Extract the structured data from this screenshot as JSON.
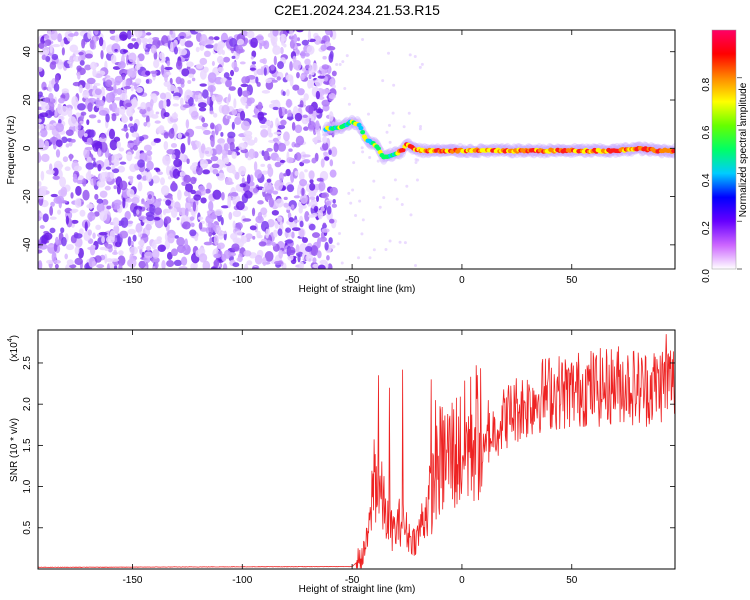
{
  "title": "C2E1.2024.234.21.53.R15",
  "chart_data": [
    {
      "type": "heatmap",
      "xlabel": "Height of straight line (km)",
      "ylabel": "Frequency (Hz)",
      "xlim": [
        -193,
        97
      ],
      "ylim": [
        -50,
        49
      ],
      "xticks": [
        -150,
        -100,
        -50,
        0,
        50
      ],
      "yticks": [
        -40,
        -20,
        0,
        20,
        40
      ],
      "noise_region_x": [
        -193,
        -58
      ],
      "signal_track": {
        "x": [
          -62,
          -55,
          -50,
          -47,
          -45,
          -43,
          -40,
          -38,
          -36,
          -33,
          -30,
          -27,
          -25,
          -22,
          -18,
          -10,
          0,
          10,
          20,
          30,
          40,
          50,
          60,
          70,
          80,
          90,
          97
        ],
        "y": [
          8,
          9,
          11,
          10,
          6,
          3,
          2,
          0,
          -4,
          -3,
          -2,
          -1,
          2,
          0,
          -1,
          -1,
          -1,
          -1,
          -1,
          -1,
          -1,
          -1,
          -1,
          -1,
          0,
          -1,
          -1
        ]
      },
      "colorbar": {
        "label": "Normalized spectral amplitude",
        "range": [
          0,
          1
        ],
        "ticks": [
          0.0,
          0.2,
          0.4,
          0.6,
          0.8
        ],
        "colors": [
          "#ffffff",
          "#cc66ff",
          "#6600ff",
          "#0000ff",
          "#00ccff",
          "#00ff66",
          "#66ff00",
          "#ffff00",
          "#ff8800",
          "#ff0000",
          "#ff0066"
        ]
      },
      "colors": {
        "noise": "#7a3cf0",
        "track_core": "#ff1a1a",
        "track_edge": "#00c8ff"
      }
    },
    {
      "type": "line",
      "xlabel": "Height of straight line (km)",
      "ylabel": "SNR (10 * v/v)",
      "yscale_label": "(x10",
      "yscale_exp": "4",
      "xlim": [
        -193,
        97
      ],
      "ylim": [
        0,
        2.9
      ],
      "xticks": [
        -150,
        -100,
        -50,
        0,
        50
      ],
      "yticks": [
        0.5,
        1.0,
        1.5,
        2.0,
        2.5
      ],
      "ytick_labels": [
        "0.5",
        "1.0",
        "1.5",
        "2.0",
        "2.5"
      ],
      "color": "#ee2222",
      "trend": {
        "x": [
          -193,
          -50,
          -45,
          -42,
          -40,
          -38,
          -35,
          -33,
          -30,
          -28,
          -26,
          -24,
          -22,
          -20,
          -18,
          -15,
          -12,
          -10,
          -5,
          0,
          5,
          8,
          10,
          12,
          15,
          20,
          25,
          30,
          35,
          40,
          45,
          50,
          55,
          60,
          65,
          70,
          75,
          80,
          85,
          90,
          95,
          97
        ],
        "y": [
          0.02,
          0.03,
          0.15,
          0.5,
          1.2,
          1.0,
          0.7,
          0.5,
          0.45,
          0.6,
          0.5,
          0.4,
          0.35,
          0.4,
          0.6,
          0.8,
          1.1,
          1.3,
          1.4,
          1.45,
          1.6,
          1.7,
          1.3,
          1.6,
          1.7,
          1.85,
          1.95,
          2.0,
          2.1,
          2.15,
          2.15,
          2.15,
          2.2,
          2.2,
          2.2,
          2.25,
          2.25,
          2.2,
          2.2,
          2.25,
          2.3,
          2.25
        ]
      },
      "peaks": [
        {
          "x": -38,
          "y": 2.35
        },
        {
          "x": -33,
          "y": 2.2
        },
        {
          "x": -27,
          "y": 2.42
        },
        {
          "x": -14,
          "y": 2.3
        },
        {
          "x": -12,
          "y": 2.05
        },
        {
          "x": 12,
          "y": 2.05
        },
        {
          "x": 93,
          "y": 2.85
        }
      ]
    }
  ]
}
